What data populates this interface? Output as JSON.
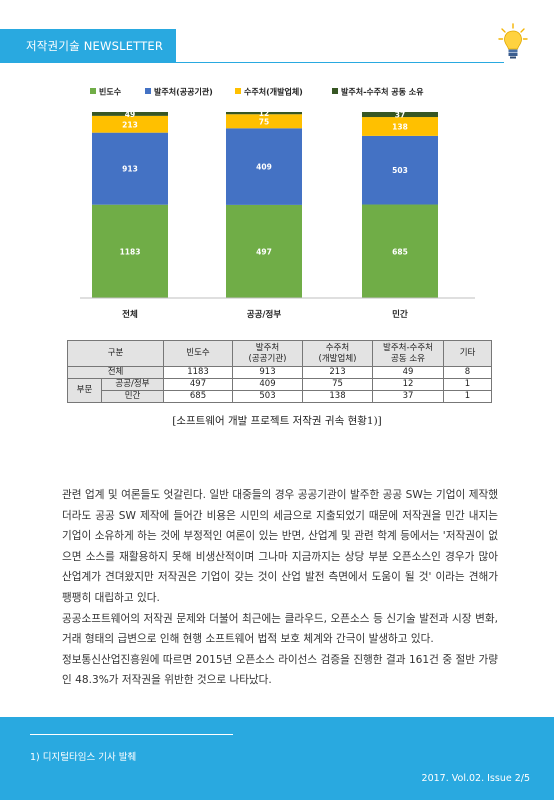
{
  "header": {
    "title": "저작권기술 NEWSLETTER"
  },
  "chart_data": {
    "type": "bar",
    "stacked": true,
    "categories": [
      "전체",
      "공공/정부",
      "민간"
    ],
    "series": [
      {
        "name": "빈도수",
        "color": "#70ad47",
        "values": [
          1183,
          497,
          685
        ]
      },
      {
        "name": "발주처(공공기관)",
        "color": "#4472c4",
        "values": [
          913,
          409,
          503
        ]
      },
      {
        "name": "수주처(개발업체)",
        "color": "#ffc000",
        "values": [
          213,
          75,
          138
        ]
      },
      {
        "name": "발주처-수주처 공동 소유",
        "color": "#375623",
        "values": [
          49,
          12,
          37
        ]
      }
    ],
    "legend": "top",
    "data_labels": true
  },
  "table": {
    "headers": [
      "구분",
      "빈도수",
      "발주처\n(공공기관)",
      "수주처\n(개발업체)",
      "발주처-수주처\n공동 소유",
      "기타"
    ],
    "total_row": {
      "label": "전체",
      "values": [
        "1183",
        "913",
        "213",
        "49",
        "8"
      ]
    },
    "group_label": "부문",
    "rows": [
      {
        "label": "공공/정부",
        "values": [
          "497",
          "409",
          "75",
          "12",
          "1"
        ]
      },
      {
        "label": "민간",
        "values": [
          "685",
          "503",
          "138",
          "37",
          "1"
        ]
      }
    ]
  },
  "caption": "[소프트웨어 개발 프로젝트 저작권 귀속 현황1)]",
  "body": {
    "paragraphs": [
      "관련 업계 및 여론들도 엇갈린다. 일반 대중들의 경우 공공기관이 발주한 공공 SW는 기업이 제작했더라도 공공 SW 제작에 들어간 비용은 시민의 세금으로 지출되었기 때문에 저작권을 민간 내지는 기업이 소유하게 하는 것에 부정적인 여론이 있는 반면, 산업계 및 관련 학계 등에서는 '저작권이 없으면 소스를 재활용하지 못해 비생산적이며 그나마 지금까지는 상당 부분 오픈소스인 경우가 많아 산업계가 견뎌왔지만 저작권은 기업이 갖는 것이 산업 발전 측면에서 도움이 될 것' 이라는 견해가 팽팽히 대립하고 있다.",
      "공공소프트웨어의 저작권 문제와 더불어 최근에는 클라우드, 오픈소스 등 신기술 발전과 시장 변화, 거래 형태의 급변으로 인해 현행 소프트웨어 법적 보호 체계와 간극이 발생하고 있다.",
      "정보통신산업진흥원에 따르면 2015년 오픈소스 라이선스 검증을 진행한 결과 161건 중 절반 가량인 48.3%가 저작권을 위반한 것으로 나타났다."
    ]
  },
  "footer": {
    "footnote": "1) 디지털타임스 기사 발췌",
    "issue": "2017. Vol.02. Issue 2/5"
  },
  "icons": {
    "header": "lightbulb-icon"
  }
}
